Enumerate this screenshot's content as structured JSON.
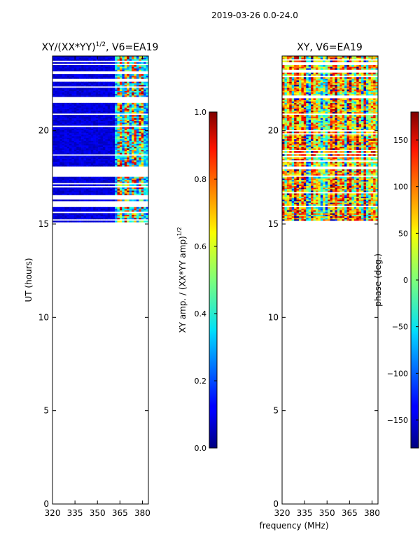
{
  "figure_title": "2019-03-26 0.0-24.0",
  "xlabel_common": "frequency (MHz)",
  "chart_data": [
    {
      "type": "heatmap",
      "title_prefix": "XY/(XX*YY)",
      "title_exponent": "1/2",
      "title_suffix": ", V6=EA19",
      "ylabel": "UT (hours)",
      "xlim": [
        320,
        384
      ],
      "ylim": [
        0,
        24
      ],
      "xticks": [
        320,
        335,
        350,
        365,
        380
      ],
      "yticks": [
        0,
        5,
        10,
        15,
        20
      ],
      "data_time_range": [
        15.1,
        24.0
      ],
      "flagged_intervals": [
        [
          17.5,
          18.1
        ],
        [
          16.0,
          16.2
        ],
        [
          23.0,
          23.2
        ],
        [
          21.5,
          21.8
        ],
        [
          22.3,
          22.4
        ]
      ],
      "hot_channels_mhz": [
        365,
        370,
        375,
        380
      ],
      "colorbar": {
        "label_prefix": "XY amp. / (XX*YY amp)",
        "label_exponent": "1/2",
        "range": [
          0.0,
          1.0
        ],
        "ticks": [
          0.0,
          0.2,
          0.4,
          0.6,
          0.8,
          1.0
        ],
        "tick_labels": [
          "0.0",
          "0.2",
          "0.4",
          "0.6",
          "0.8",
          "1.0"
        ]
      }
    },
    {
      "type": "heatmap",
      "title": "XY, V6=EA19",
      "xlim": [
        320,
        384
      ],
      "ylim": [
        0,
        24
      ],
      "xticks": [
        320,
        335,
        350,
        365,
        380
      ],
      "yticks": [
        0,
        5,
        10,
        15,
        20
      ],
      "data_time_range": [
        15.1,
        24.0
      ],
      "flagged_intervals": [
        [
          17.9,
          18.1
        ],
        [
          23.1,
          23.3
        ],
        [
          21.7,
          21.9
        ]
      ],
      "colorbar": {
        "label": "phase (deg.)",
        "range": [
          -180,
          180
        ],
        "ticks": [
          -150,
          -100,
          -50,
          0,
          50,
          100,
          150
        ],
        "tick_labels": [
          "−150",
          "−100",
          "−50",
          "0",
          "50",
          "100",
          "150"
        ]
      }
    }
  ]
}
